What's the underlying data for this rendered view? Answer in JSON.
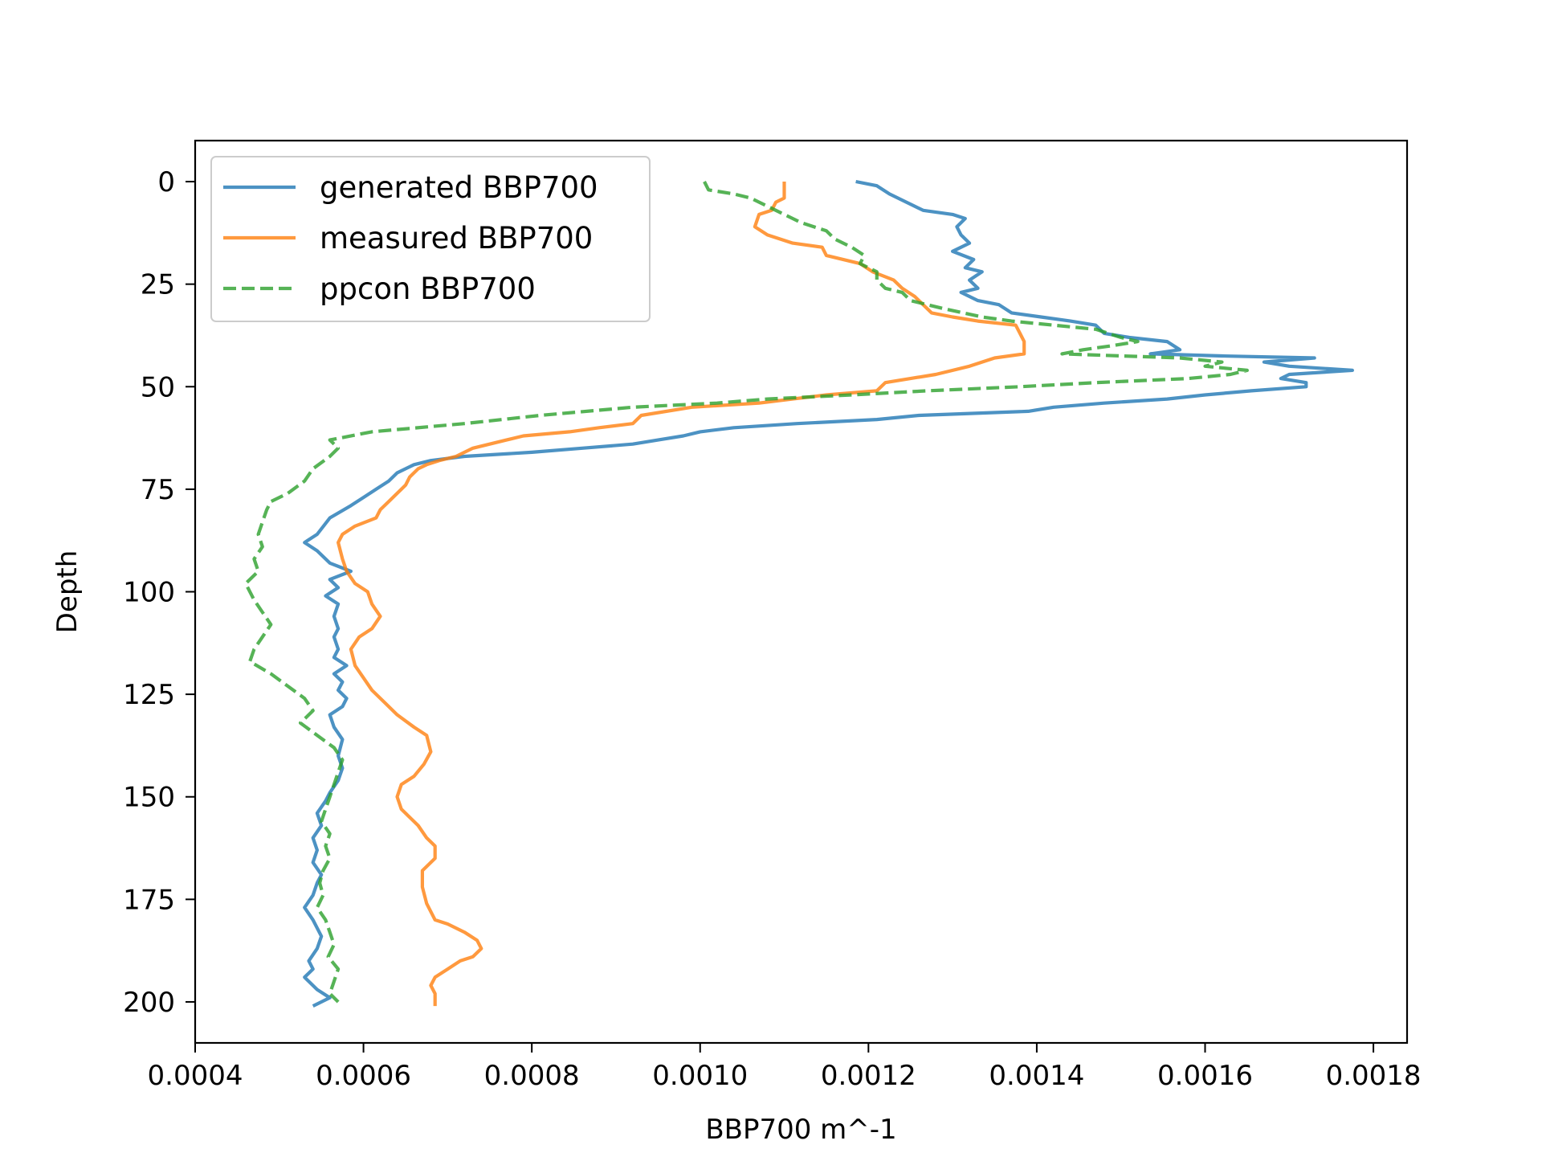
{
  "chart_data": {
    "type": "line",
    "title": "",
    "xlabel": "BBP700 m^-1",
    "ylabel": "Depth",
    "xlim": [
      0.0004,
      0.00184
    ],
    "ylim": [
      210,
      -10
    ],
    "y_inverted": true,
    "xticks": [
      0.0004,
      0.0006,
      0.0008,
      0.001,
      0.0012,
      0.0014,
      0.0016,
      0.0018
    ],
    "xtick_labels": [
      "0.0004",
      "0.0006",
      "0.0008",
      "0.0010",
      "0.0012",
      "0.0014",
      "0.0016",
      "0.0018"
    ],
    "yticks": [
      0,
      25,
      50,
      75,
      100,
      125,
      150,
      175,
      200
    ],
    "ytick_labels": [
      "0",
      "25",
      "50",
      "75",
      "100",
      "125",
      "150",
      "175",
      "200"
    ],
    "grid": false,
    "legend_position": "top-left",
    "series": [
      {
        "name": "generated BBP700",
        "color": "#1f77b4",
        "dash": "solid",
        "points": [
          [
            0.001185,
            0
          ],
          [
            0.00121,
            1
          ],
          [
            0.001225,
            3
          ],
          [
            0.001245,
            5
          ],
          [
            0.001265,
            7
          ],
          [
            0.0013,
            8
          ],
          [
            0.001315,
            9
          ],
          [
            0.001305,
            11
          ],
          [
            0.00131,
            13
          ],
          [
            0.00132,
            15
          ],
          [
            0.0013,
            17
          ],
          [
            0.001325,
            19
          ],
          [
            0.001315,
            21
          ],
          [
            0.001335,
            22
          ],
          [
            0.00132,
            24
          ],
          [
            0.00133,
            26
          ],
          [
            0.00131,
            27
          ],
          [
            0.00133,
            29
          ],
          [
            0.001355,
            30
          ],
          [
            0.00137,
            32
          ],
          [
            0.001405,
            33
          ],
          [
            0.00144,
            34
          ],
          [
            0.00147,
            35
          ],
          [
            0.00148,
            37
          ],
          [
            0.00151,
            38
          ],
          [
            0.001555,
            39
          ],
          [
            0.00157,
            41
          ],
          [
            0.001535,
            42
          ],
          [
            0.00162,
            42.5
          ],
          [
            0.00173,
            43
          ],
          [
            0.00167,
            44
          ],
          [
            0.0017,
            45
          ],
          [
            0.001775,
            46
          ],
          [
            0.0017,
            47
          ],
          [
            0.00169,
            48
          ],
          [
            0.00172,
            49
          ],
          [
            0.00172,
            50
          ],
          [
            0.001655,
            51
          ],
          [
            0.0016,
            52
          ],
          [
            0.001555,
            53
          ],
          [
            0.00148,
            54
          ],
          [
            0.00142,
            55
          ],
          [
            0.00139,
            56
          ],
          [
            0.00126,
            57
          ],
          [
            0.00121,
            58
          ],
          [
            0.001115,
            59
          ],
          [
            0.00104,
            60
          ],
          [
            0.001,
            61
          ],
          [
            0.00098,
            62
          ],
          [
            0.00095,
            63
          ],
          [
            0.00092,
            64
          ],
          [
            0.00086,
            65
          ],
          [
            0.0008,
            66
          ],
          [
            0.00072,
            67
          ],
          [
            0.00068,
            68
          ],
          [
            0.00066,
            69
          ],
          [
            0.00064,
            71
          ],
          [
            0.00063,
            73
          ],
          [
            0.000615,
            75
          ],
          [
            0.0006,
            77
          ],
          [
            0.000585,
            79
          ],
          [
            0.00056,
            82
          ],
          [
            0.000545,
            86
          ],
          [
            0.00053,
            88
          ],
          [
            0.000545,
            90
          ],
          [
            0.00056,
            93
          ],
          [
            0.000585,
            95
          ],
          [
            0.00056,
            97
          ],
          [
            0.00057,
            99
          ],
          [
            0.000555,
            101
          ],
          [
            0.00057,
            103
          ],
          [
            0.000565,
            106
          ],
          [
            0.00057,
            109
          ],
          [
            0.000565,
            111
          ],
          [
            0.00057,
            114
          ],
          [
            0.000565,
            116
          ],
          [
            0.00058,
            118
          ],
          [
            0.000565,
            120
          ],
          [
            0.000575,
            122
          ],
          [
            0.00057,
            124
          ],
          [
            0.00058,
            126
          ],
          [
            0.000575,
            128
          ],
          [
            0.00056,
            130
          ],
          [
            0.000565,
            133
          ],
          [
            0.000575,
            136
          ],
          [
            0.00057,
            140
          ],
          [
            0.000575,
            143
          ],
          [
            0.00057,
            146
          ],
          [
            0.00056,
            149
          ],
          [
            0.000555,
            151
          ],
          [
            0.000545,
            154
          ],
          [
            0.00055,
            157
          ],
          [
            0.00054,
            160
          ],
          [
            0.000545,
            163
          ],
          [
            0.00054,
            166
          ],
          [
            0.00055,
            169
          ],
          [
            0.000545,
            171
          ],
          [
            0.00054,
            174
          ],
          [
            0.00053,
            177
          ],
          [
            0.00054,
            180
          ],
          [
            0.00055,
            184
          ],
          [
            0.000545,
            187
          ],
          [
            0.000535,
            190
          ],
          [
            0.00054,
            192
          ],
          [
            0.00053,
            194
          ],
          [
            0.000545,
            197
          ],
          [
            0.00056,
            199
          ],
          [
            0.00054,
            201
          ]
        ]
      },
      {
        "name": "measured BBP700",
        "color": "#ff7f0e",
        "dash": "solid",
        "points": [
          [
            0.0011,
            0
          ],
          [
            0.0011,
            4
          ],
          [
            0.00109,
            5
          ],
          [
            0.001085,
            7
          ],
          [
            0.00107,
            8
          ],
          [
            0.001065,
            11
          ],
          [
            0.00108,
            13
          ],
          [
            0.00111,
            15
          ],
          [
            0.001145,
            16
          ],
          [
            0.00115,
            18
          ],
          [
            0.00119,
            20
          ],
          [
            0.001205,
            22
          ],
          [
            0.00123,
            24
          ],
          [
            0.00124,
            26
          ],
          [
            0.001255,
            28
          ],
          [
            0.001265,
            30
          ],
          [
            0.001275,
            32
          ],
          [
            0.0013,
            33
          ],
          [
            0.00133,
            34
          ],
          [
            0.001375,
            35
          ],
          [
            0.00138,
            37
          ],
          [
            0.001385,
            39
          ],
          [
            0.001385,
            42
          ],
          [
            0.00135,
            43
          ],
          [
            0.00132,
            45
          ],
          [
            0.00128,
            47
          ],
          [
            0.00125,
            48
          ],
          [
            0.00122,
            49
          ],
          [
            0.00121,
            51
          ],
          [
            0.00115,
            52
          ],
          [
            0.00111,
            53
          ],
          [
            0.00107,
            54
          ],
          [
            0.00099,
            55
          ],
          [
            0.00093,
            57
          ],
          [
            0.00092,
            59
          ],
          [
            0.00088,
            60
          ],
          [
            0.000845,
            61
          ],
          [
            0.00079,
            62
          ],
          [
            0.00077,
            63
          ],
          [
            0.00073,
            65
          ],
          [
            0.00071,
            67
          ],
          [
            0.00069,
            68
          ],
          [
            0.000675,
            69
          ],
          [
            0.000665,
            70
          ],
          [
            0.000655,
            72
          ],
          [
            0.00065,
            74
          ],
          [
            0.00064,
            76
          ],
          [
            0.00063,
            78
          ],
          [
            0.00062,
            80
          ],
          [
            0.000615,
            82
          ],
          [
            0.00059,
            84
          ],
          [
            0.000575,
            86
          ],
          [
            0.00057,
            88
          ],
          [
            0.000575,
            92
          ],
          [
            0.00058,
            95
          ],
          [
            0.00059,
            98
          ],
          [
            0.000605,
            100
          ],
          [
            0.00061,
            103
          ],
          [
            0.00062,
            106
          ],
          [
            0.00061,
            109
          ],
          [
            0.000595,
            111
          ],
          [
            0.000585,
            114
          ],
          [
            0.00059,
            118
          ],
          [
            0.0006,
            121
          ],
          [
            0.00061,
            124
          ],
          [
            0.000625,
            127
          ],
          [
            0.00064,
            130
          ],
          [
            0.00066,
            133
          ],
          [
            0.000675,
            135
          ],
          [
            0.00068,
            139
          ],
          [
            0.000672,
            142
          ],
          [
            0.00066,
            145
          ],
          [
            0.000645,
            147
          ],
          [
            0.00064,
            150
          ],
          [
            0.000645,
            153
          ],
          [
            0.000655,
            155
          ],
          [
            0.000665,
            157
          ],
          [
            0.000675,
            160
          ],
          [
            0.000685,
            162
          ],
          [
            0.000685,
            165
          ],
          [
            0.00067,
            168
          ],
          [
            0.00067,
            172
          ],
          [
            0.000675,
            176
          ],
          [
            0.000685,
            180
          ],
          [
            0.0007,
            181
          ],
          [
            0.00072,
            183
          ],
          [
            0.000735,
            185
          ],
          [
            0.00074,
            187
          ],
          [
            0.00073,
            189
          ],
          [
            0.000715,
            190
          ],
          [
            0.0007,
            192
          ],
          [
            0.000685,
            194
          ],
          [
            0.00068,
            196
          ],
          [
            0.000685,
            198
          ],
          [
            0.000685,
            201
          ]
        ]
      },
      {
        "name": "ppcon BBP700",
        "color": "#2ca02c",
        "dash": "dashed",
        "points": [
          [
            0.001005,
            0
          ],
          [
            0.00101,
            2
          ],
          [
            0.00104,
            3
          ],
          [
            0.00106,
            4
          ],
          [
            0.00108,
            6
          ],
          [
            0.0011,
            8
          ],
          [
            0.00112,
            10
          ],
          [
            0.00115,
            12
          ],
          [
            0.00116,
            14
          ],
          [
            0.00118,
            16
          ],
          [
            0.001195,
            18
          ],
          [
            0.00119,
            20
          ],
          [
            0.00121,
            22
          ],
          [
            0.00121,
            24
          ],
          [
            0.00122,
            26
          ],
          [
            0.00124,
            27
          ],
          [
            0.00125,
            29
          ],
          [
            0.00129,
            31
          ],
          [
            0.001335,
            33
          ],
          [
            0.00137,
            34
          ],
          [
            0.00142,
            35
          ],
          [
            0.00147,
            36
          ],
          [
            0.0015,
            38
          ],
          [
            0.00152,
            39
          ],
          [
            0.00149,
            40
          ],
          [
            0.001455,
            41
          ],
          [
            0.00143,
            42
          ],
          [
            0.00157,
            43
          ],
          [
            0.00162,
            44
          ],
          [
            0.0016,
            45
          ],
          [
            0.00165,
            46
          ],
          [
            0.00163,
            47
          ],
          [
            0.00158,
            48
          ],
          [
            0.00147,
            49
          ],
          [
            0.00138,
            50
          ],
          [
            0.00127,
            51
          ],
          [
            0.00118,
            52
          ],
          [
            0.00108,
            53
          ],
          [
            0.00102,
            54
          ],
          [
            0.00092,
            55
          ],
          [
            0.00081,
            57
          ],
          [
            0.00072,
            59
          ],
          [
            0.00061,
            61
          ],
          [
            0.00056,
            63
          ],
          [
            0.00057,
            65
          ],
          [
            0.00056,
            67
          ],
          [
            0.00054,
            70
          ],
          [
            0.00053,
            73
          ],
          [
            0.00051,
            76
          ],
          [
            0.00049,
            78
          ],
          [
            0.000485,
            80
          ],
          [
            0.00048,
            83
          ],
          [
            0.000475,
            86
          ],
          [
            0.00048,
            89
          ],
          [
            0.00047,
            92
          ],
          [
            0.000475,
            95
          ],
          [
            0.00046,
            98
          ],
          [
            0.00047,
            102
          ],
          [
            0.00048,
            105
          ],
          [
            0.00049,
            108
          ],
          [
            0.00048,
            111
          ],
          [
            0.00047,
            114
          ],
          [
            0.000465,
            117
          ],
          [
            0.00049,
            120
          ],
          [
            0.00051,
            123
          ],
          [
            0.00053,
            126
          ],
          [
            0.00054,
            129
          ],
          [
            0.000525,
            132
          ],
          [
            0.000545,
            135
          ],
          [
            0.000565,
            138
          ],
          [
            0.000575,
            141
          ],
          [
            0.00057,
            144
          ],
          [
            0.000565,
            147
          ],
          [
            0.00056,
            150
          ],
          [
            0.000555,
            153
          ],
          [
            0.00055,
            156
          ],
          [
            0.00056,
            159
          ],
          [
            0.000555,
            162
          ],
          [
            0.00056,
            165
          ],
          [
            0.000552,
            168
          ],
          [
            0.000548,
            171
          ],
          [
            0.000552,
            174
          ],
          [
            0.000545,
            177
          ],
          [
            0.000555,
            180
          ],
          [
            0.00056,
            183
          ],
          [
            0.000565,
            186
          ],
          [
            0.000558,
            189
          ],
          [
            0.00057,
            192
          ],
          [
            0.000565,
            195
          ],
          [
            0.00056,
            198
          ],
          [
            0.00057,
            200
          ]
        ]
      }
    ]
  }
}
